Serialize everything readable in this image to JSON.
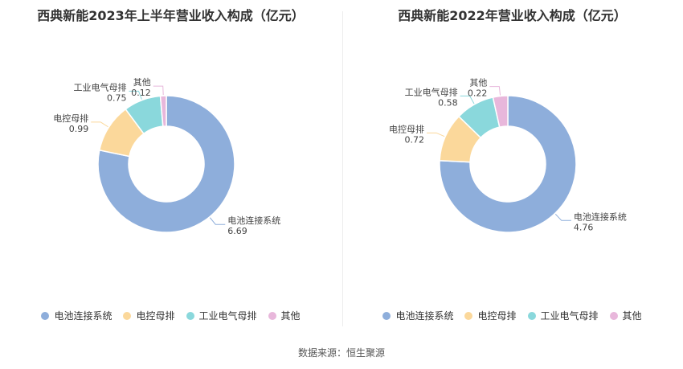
{
  "colors": [
    "#8eaedb",
    "#fbd89b",
    "#8ad8dc",
    "#e8b7db"
  ],
  "source": "数据来源：恒生聚源",
  "chart_data": [
    {
      "type": "pie",
      "donut": true,
      "title": "西典新能2023年上半年营业收入构成（亿元）",
      "categories": [
        "电池连接系统",
        "电控母排",
        "工业电气母排",
        "其他"
      ],
      "values": [
        6.69,
        0.99,
        0.75,
        0.12
      ],
      "value_labels": [
        "6.69",
        "0.99",
        "0.75",
        "0.12"
      ],
      "legend": "bottom"
    },
    {
      "type": "pie",
      "donut": true,
      "title": "西典新能2022年营业收入构成（亿元）",
      "categories": [
        "电池连接系统",
        "电控母排",
        "工业电气母排",
        "其他"
      ],
      "values": [
        4.76,
        0.72,
        0.58,
        0.22
      ],
      "value_labels": [
        "4.76",
        "0.72",
        "0.58",
        "0.22"
      ],
      "legend": "bottom"
    }
  ]
}
